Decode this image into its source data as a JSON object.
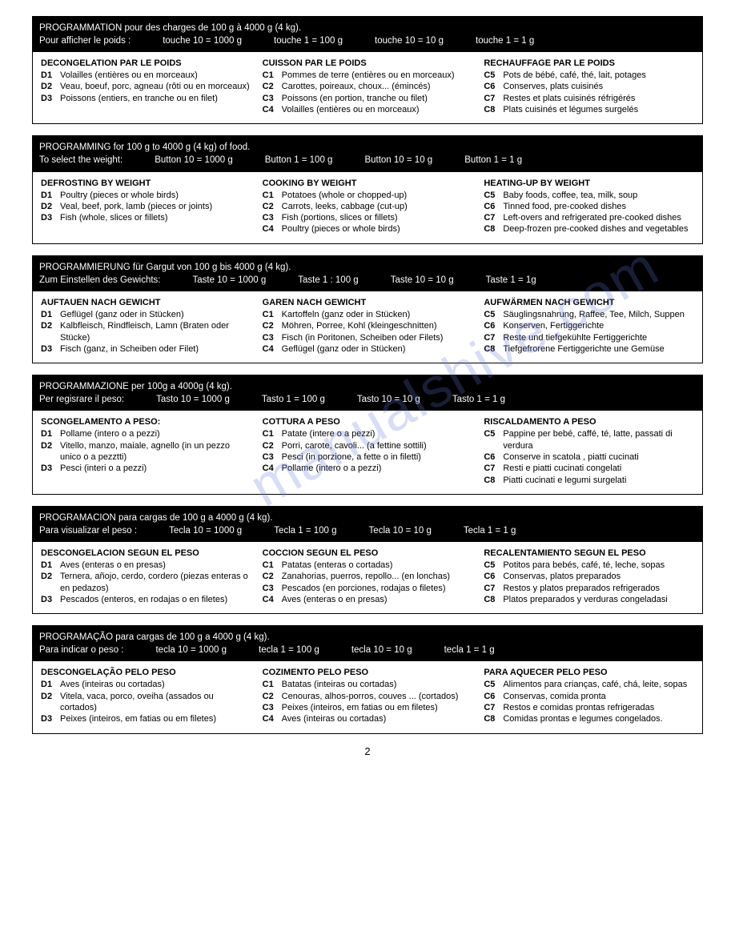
{
  "pageNumber": "2",
  "watermark": "manualshive.com",
  "sections": [
    {
      "header": {
        "line1": "PROGRAMMATION pour des charges de 100 g à 4000 g (4 kg).",
        "line2_prefix": "Pour afficher le poids :",
        "buttons": [
          "touche 10 = 1000 g",
          "touche 1 = 100 g",
          "touche 10 = 10 g",
          "touche 1 = 1 g"
        ]
      },
      "columns": [
        {
          "title": "DECONGELATION PAR LE POIDS",
          "items": [
            {
              "code": "D1",
              "text": "Volailles (entières ou en morceaux)"
            },
            {
              "code": "D2",
              "text": "Veau, boeuf, porc, agneau (rôti ou en morceaux)"
            },
            {
              "code": "D3",
              "text": "Poissons (entiers, en tranche ou en filet)"
            }
          ]
        },
        {
          "title": "CUISSON PAR LE POIDS",
          "items": [
            {
              "code": "C1",
              "text": "Pommes de terre (entières ou en morceaux)"
            },
            {
              "code": "C2",
              "text": "Carottes, poireaux, choux... (émincés)"
            },
            {
              "code": "C3",
              "text": "Poissons (en portion, tranche ou filet)"
            },
            {
              "code": "C4",
              "text": "Volailles (entières ou en morceaux)"
            }
          ]
        },
        {
          "title": "RECHAUFFAGE PAR LE POIDS",
          "items": [
            {
              "code": "C5",
              "text": "Pots de bébé, café, thé, lait, potages"
            },
            {
              "code": "C6",
              "text": "Conserves, plats cuisinés"
            },
            {
              "code": "C7",
              "text": "Restes et plats cuisinés réfrigérés"
            },
            {
              "code": "C8",
              "text": "Plats cuisinés et légumes surgelés"
            }
          ]
        }
      ]
    },
    {
      "header": {
        "line1": "PROGRAMMING for 100 g to 4000 g (4 kg) of food.",
        "line2_prefix": "To select the weight:",
        "buttons": [
          "Button 10 = 1000 g",
          "Button 1 = 100 g",
          "Button 10 = 10 g",
          "Button 1 = 1 g"
        ]
      },
      "columns": [
        {
          "title": "DEFROSTING BY WEIGHT",
          "items": [
            {
              "code": "D1",
              "text": "Poultry (pieces or whole birds)"
            },
            {
              "code": "D2",
              "text": "Veal, beef, pork, lamb (pieces or joints)"
            },
            {
              "code": "D3",
              "text": "Fish (whole, slices or fillets)"
            }
          ]
        },
        {
          "title": "COOKING BY WEIGHT",
          "items": [
            {
              "code": "C1",
              "text": "Potatoes (whole or chopped-up)"
            },
            {
              "code": "C2",
              "text": "Carrots, leeks, cabbage (cut-up)"
            },
            {
              "code": "C3",
              "text": "Fish (portions, slices or fillets)"
            },
            {
              "code": "C4",
              "text": "Poultry (pieces or whole birds)"
            }
          ]
        },
        {
          "title": "HEATING-UP BY WEIGHT",
          "items": [
            {
              "code": "C5",
              "text": "Baby foods, coffee, tea, milk, soup"
            },
            {
              "code": "C6",
              "text": "Tinned food, pre-cooked dishes"
            },
            {
              "code": "C7",
              "text": "Left-overs and refrigerated pre-cooked dishes"
            },
            {
              "code": "C8",
              "text": "Deep-frozen pre-cooked dishes and vegetables"
            }
          ]
        }
      ]
    },
    {
      "header": {
        "line1": "PROGRAMMIERUNG für Gargut von 100 g bis 4000 g (4 kg).",
        "line2_prefix": "Zum Einstellen des Gewichts:",
        "buttons": [
          "Taste 10 = 1000 g",
          "Taste 1 : 100 g",
          "Taste 10 = 10 g",
          "Taste 1 = 1g"
        ]
      },
      "columns": [
        {
          "title": "AUFTAUEN NACH GEWICHT",
          "items": [
            {
              "code": "D1",
              "text": "Geflügel (ganz oder in Stücken)"
            },
            {
              "code": "D2",
              "text": "Kalbfleisch, Rindfleisch, Lamn (Braten oder Stücke)"
            },
            {
              "code": "D3",
              "text": "Fisch (ganz, in Scheiben oder Filet)"
            }
          ]
        },
        {
          "title": "GAREN NACH GEWICHT",
          "items": [
            {
              "code": "C1",
              "text": "Kartoffeln (ganz oder in Stücken)"
            },
            {
              "code": "C2",
              "text": "Möhren, Porree, Kohl (kleingeschnitten)"
            },
            {
              "code": "C3",
              "text": "Fisch (in Poritonen, Scheiben oder Filets)"
            },
            {
              "code": "C4",
              "text": "Geflügel (ganz oder in Stücken)"
            }
          ]
        },
        {
          "title": "AUFWÄRMEN NACH GEWICHT",
          "items": [
            {
              "code": "C5",
              "text": "Säuglingsnahrung, Raffee, Tee, Milch, Suppen"
            },
            {
              "code": "C6",
              "text": "Konserven, Fertiggerichte"
            },
            {
              "code": "C7",
              "text": "Reste und tiefgekühlte Fertiggerichte"
            },
            {
              "code": "C8",
              "text": "Tiefgefrorene Fertiggerichte une Gemüse"
            }
          ]
        }
      ]
    },
    {
      "header": {
        "line1": "PROGRAMMAZIONE per 100g a 4000g (4 kg).",
        "line2_prefix": "Per regisrare il peso:",
        "buttons": [
          "Tasto 10 = 1000 g",
          "Tasto 1 = 100 g",
          "Tasto 10 = 10 g",
          "Tasto 1 = 1 g"
        ]
      },
      "columns": [
        {
          "title": "SCONGELAMENTO A PESO:",
          "items": [
            {
              "code": "D1",
              "text": "Pollame (intero o a pezzi)"
            },
            {
              "code": "D2",
              "text": "Vitello, manzo, maiale, agnello (in un pezzo unico o a pezztti)"
            },
            {
              "code": "D3",
              "text": "Pesci (interi o a pezzi)"
            }
          ]
        },
        {
          "title": "COTTURA A PESO",
          "items": [
            {
              "code": "C1",
              "text": "Patate (intere o a pezzi)"
            },
            {
              "code": "C2",
              "text": "Porri, carote, cavoli... (a fettine sottili)"
            },
            {
              "code": "C3",
              "text": "Pesci (in porzione, a fette o in filetti)"
            },
            {
              "code": "C4",
              "text": "Pollame (intero o a pezzi)"
            }
          ]
        },
        {
          "title": "RISCALDAMENTO A PESO",
          "items": [
            {
              "code": "C5",
              "text": "Pappine per bebé, caffé, té, latte, passati di verdura"
            },
            {
              "code": "C6",
              "text": "Conserve in scatola , piatti cucinati"
            },
            {
              "code": "C7",
              "text": "Resti e piatti cucinati congelati"
            },
            {
              "code": "C8",
              "text": "Piatti cucinati e legumi surgelati"
            }
          ]
        }
      ]
    },
    {
      "header": {
        "line1": "PROGRAMACION para cargas de 100 g a 4000 g (4 kg).",
        "line2_prefix": "Para visualizar el peso :",
        "buttons": [
          "Tecla 10 = 1000 g",
          "Tecla 1 = 100 g",
          "Tecla 10 = 10 g",
          "Tecla 1 = 1 g"
        ]
      },
      "columns": [
        {
          "title": "DESCONGELACION SEGUN EL PESO",
          "items": [
            {
              "code": "D1",
              "text": "Aves (enteras o en presas)"
            },
            {
              "code": "D2",
              "text": "Ternera, añojo, cerdo, cordero (piezas enteras o en pedazos)"
            },
            {
              "code": "D3",
              "text": "Pescados (enteros, en rodajas o en filetes)"
            }
          ]
        },
        {
          "title": "COCCION SEGUN EL PESO",
          "items": [
            {
              "code": "C1",
              "text": "Patatas (enteras o cortadas)"
            },
            {
              "code": "C2",
              "text": "Zanahorias, puerros, repollo... (en lonchas)"
            },
            {
              "code": "C3",
              "text": "Pescados (en porciones, rodajas o filetes)"
            },
            {
              "code": "C4",
              "text": "Aves (enteras o en presas)"
            }
          ]
        },
        {
          "title": "RECALENTAMIENTO SEGUN EL PESO",
          "items": [
            {
              "code": "C5",
              "text": "Potitos para bebés, café, té, leche, sopas"
            },
            {
              "code": "C6",
              "text": "Conservas, platos preparados"
            },
            {
              "code": "C7",
              "text": "Restos y platos preparados refrigerados"
            },
            {
              "code": "C8",
              "text": "Platos preparados y verduras congeladasi"
            }
          ]
        }
      ]
    },
    {
      "header": {
        "line1": "PROGRAMAÇÃO para cargas de 100 g a 4000 g (4 kg).",
        "line2_prefix": "Para indicar o peso :",
        "buttons": [
          "tecla 10 = 1000 g",
          "tecla 1 = 100 g",
          "tecla 10 = 10 g",
          "tecla 1 = 1 g"
        ]
      },
      "columns": [
        {
          "title": "DESCONGELAÇÃO PELO PESO",
          "items": [
            {
              "code": "D1",
              "text": "Aves (inteiras ou cortadas)"
            },
            {
              "code": "D2",
              "text": "Vitela, vaca, porco, oveiha (assados ou cortados)"
            },
            {
              "code": "D3",
              "text": "Peixes (inteiros, em fatias ou em filetes)"
            }
          ]
        },
        {
          "title": "COZIMENTO PELO PESO",
          "items": [
            {
              "code": "C1",
              "text": "Batatas (inteiras ou cortadas)"
            },
            {
              "code": "C2",
              "text": "Cenouras, alhos-porros, couves ... (cortados)"
            },
            {
              "code": "C3",
              "text": "Peixes (inteiros, em fatias ou em filetes)"
            },
            {
              "code": "C4",
              "text": "Aves (inteiras ou cortadas)"
            }
          ]
        },
        {
          "title": "PARA AQUECER PELO PESO",
          "items": [
            {
              "code": "C5",
              "text": "Alimentos para crianças, café, chá, leite, sopas"
            },
            {
              "code": "C6",
              "text": "Conservas, comida pronta"
            },
            {
              "code": "C7",
              "text": "Restos e comidas prontas refrigeradas"
            },
            {
              "code": "C8",
              "text": "Comidas prontas e legumes congelados."
            }
          ]
        }
      ]
    }
  ]
}
